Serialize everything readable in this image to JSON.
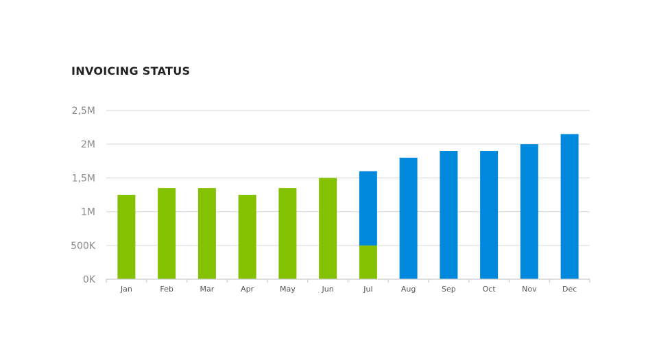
{
  "chart_title": "INVOICING STATUS",
  "chart_data": {
    "type": "bar",
    "stacked": true,
    "title": "INVOICING STATUS",
    "xlabel": "",
    "ylabel": "",
    "categories": [
      "Jan",
      "Feb",
      "Mar",
      "Apr",
      "May",
      "Jun",
      "Jul",
      "Aug",
      "Sep",
      "Oct",
      "Nov",
      "Dec"
    ],
    "series": [
      {
        "color": "#84c100",
        "values": [
          1250000,
          1350000,
          1350000,
          1250000,
          1350000,
          1500000,
          500000,
          0,
          0,
          0,
          0,
          0
        ]
      },
      {
        "color": "#0089dc",
        "values": [
          0,
          0,
          0,
          0,
          0,
          0,
          1100000,
          1800000,
          1900000,
          1900000,
          2000000,
          2150000
        ]
      }
    ],
    "yticks": [
      0,
      500000,
      1000000,
      1500000,
      2000000,
      2500000
    ],
    "ytick_labels": [
      "0K",
      "500K",
      "1M",
      "1,5M",
      "2M",
      "2,5M"
    ],
    "ylim": [
      0,
      2500000
    ],
    "grid": true,
    "legend": "none"
  }
}
